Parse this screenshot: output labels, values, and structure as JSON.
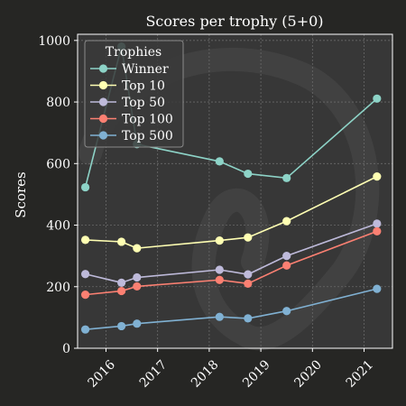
{
  "chart_data": {
    "type": "line",
    "title": "Scores per trophy (5+0)",
    "xlabel": "",
    "ylabel": "Scores",
    "xlim": [
      2015.45,
      2021.55
    ],
    "ylim": [
      0,
      1020
    ],
    "xticks": [
      2016,
      2017,
      2018,
      2019,
      2020,
      2021
    ],
    "yticks": [
      0,
      200,
      400,
      600,
      800,
      1000
    ],
    "grid": true,
    "legend": {
      "title": "Trophies",
      "placement": "top-left"
    },
    "series": [
      {
        "name": "Winner",
        "color": "#8dd3c7",
        "x": [
          2015.6,
          2016.3,
          2016.6,
          2018.2,
          2018.75,
          2019.5,
          2021.25
        ],
        "y": [
          523,
          980,
          663,
          607,
          567,
          553,
          811
        ]
      },
      {
        "name": "Top 10",
        "color": "#ffffb3",
        "x": [
          2015.6,
          2016.3,
          2016.6,
          2018.2,
          2018.75,
          2019.5,
          2021.25
        ],
        "y": [
          352,
          346,
          325,
          350,
          360,
          413,
          558
        ]
      },
      {
        "name": "Top 50",
        "color": "#bebada",
        "x": [
          2015.6,
          2016.3,
          2016.6,
          2018.2,
          2018.75,
          2019.5,
          2021.25
        ],
        "y": [
          241,
          213,
          230,
          255,
          240,
          300,
          405
        ]
      },
      {
        "name": "Top 100",
        "color": "#fb8072",
        "x": [
          2015.6,
          2016.3,
          2016.6,
          2018.2,
          2018.75,
          2019.5,
          2021.25
        ],
        "y": [
          174,
          186,
          201,
          222,
          210,
          269,
          380
        ]
      },
      {
        "name": "Top 500",
        "color": "#80b1d3",
        "x": [
          2015.6,
          2016.3,
          2016.6,
          2018.2,
          2018.75,
          2019.5,
          2021.25
        ],
        "y": [
          61,
          72,
          80,
          102,
          97,
          121,
          193
        ]
      }
    ]
  }
}
